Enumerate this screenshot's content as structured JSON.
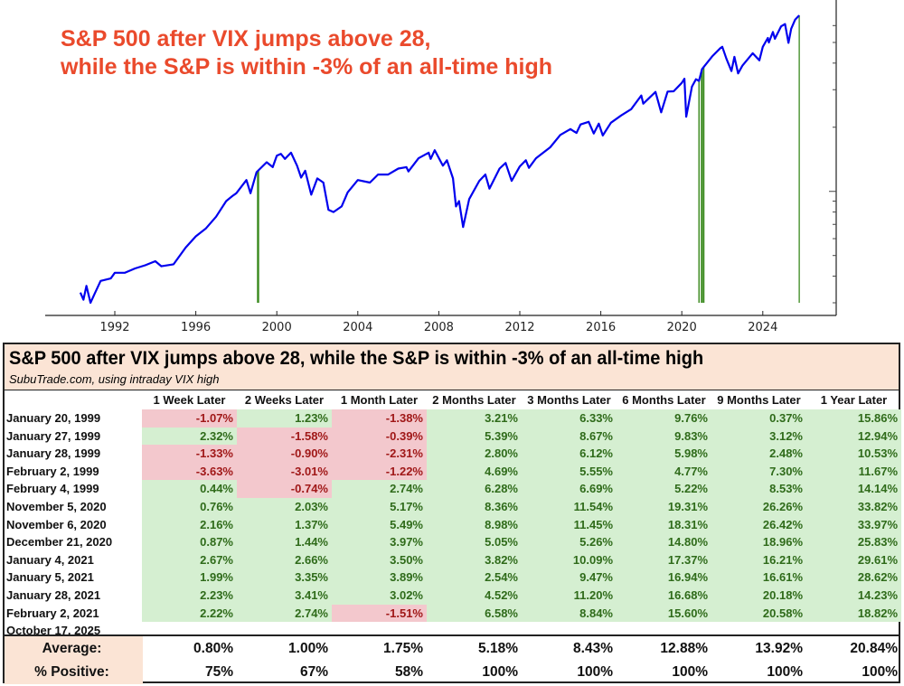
{
  "chart_data": {
    "type": "line",
    "title": "S&P 500 after VIX jumps above 28,",
    "subtitle": "while the S&P is within -3% of an all-time high",
    "xlabel": "",
    "ylabel": "",
    "y_scale": "log",
    "x_ticks": [
      "1992",
      "1996",
      "2000",
      "2004",
      "2008",
      "2012",
      "2016",
      "2020",
      "2024"
    ],
    "xlim": [
      1990,
      2027.5
    ],
    "ylim": [
      290,
      7000
    ],
    "grid": false,
    "line_color": "#0000ee",
    "event_line_color": "#3a8a1e",
    "title_color": "#ea4a2c",
    "series": [
      {
        "x": [
          1990.3,
          1990.45,
          1990.6,
          1990.8,
          1991.0,
          1991.3,
          1991.8,
          1992.0,
          1992.5,
          1993.0,
          1993.5,
          1994.0,
          1994.3,
          1994.9,
          1995.5,
          1996.0,
          1996.5,
          1997.0,
          1997.5,
          1997.8,
          1998.0,
          1998.5,
          1998.7,
          1999.0,
          1999.5,
          1999.8,
          2000.0,
          2000.2,
          2000.4,
          2000.7,
          2001.0,
          2001.2,
          2001.4,
          2001.7,
          2002.0,
          2002.3,
          2002.55,
          2002.8,
          2003.2,
          2003.5,
          2004.0,
          2004.6,
          2005.0,
          2005.5,
          2006.0,
          2006.4,
          2006.5,
          2007.0,
          2007.5,
          2007.6,
          2007.8,
          2008.2,
          2008.4,
          2008.7,
          2008.85,
          2009.0,
          2009.2,
          2009.5,
          2010.0,
          2010.3,
          2010.5,
          2011.0,
          2011.3,
          2011.6,
          2012.0,
          2012.3,
          2012.45,
          2012.8,
          2013.0,
          2013.5,
          2014.0,
          2014.5,
          2014.8,
          2015.0,
          2015.4,
          2015.65,
          2015.9,
          2016.1,
          2016.5,
          2017.0,
          2017.5,
          2018.0,
          2018.1,
          2018.7,
          2018.98,
          2019.3,
          2019.6,
          2020.0,
          2020.13,
          2020.22,
          2020.5,
          2020.7,
          2020.85,
          2021.0,
          2021.5,
          2021.9,
          2022.0,
          2022.2,
          2022.45,
          2022.6,
          2022.78,
          2023.0,
          2023.5,
          2023.83,
          2024.0,
          2024.25,
          2024.3,
          2024.5,
          2024.6,
          2024.9,
          2025.1,
          2025.27,
          2025.4,
          2025.6,
          2025.8
        ],
        "y": [
          335,
          310,
          360,
          300,
          330,
          380,
          390,
          415,
          415,
          435,
          450,
          470,
          445,
          455,
          545,
          615,
          670,
          760,
          900,
          950,
          980,
          1130,
          980,
          1230,
          1370,
          1300,
          1470,
          1500,
          1420,
          1520,
          1320,
          1160,
          1250,
          965,
          1150,
          1100,
          820,
          800,
          850,
          990,
          1130,
          1100,
          1200,
          1200,
          1280,
          1300,
          1240,
          1430,
          1520,
          1420,
          1560,
          1320,
          1400,
          1150,
          850,
          900,
          680,
          920,
          1120,
          1200,
          1030,
          1280,
          1360,
          1120,
          1310,
          1400,
          1290,
          1430,
          1480,
          1610,
          1840,
          1960,
          1880,
          2060,
          2120,
          1870,
          2080,
          1830,
          2100,
          2270,
          2430,
          2820,
          2580,
          2930,
          2350,
          2940,
          2950,
          3230,
          3380,
          2240,
          3100,
          3360,
          3300,
          3750,
          4300,
          4700,
          4770,
          4200,
          3670,
          4280,
          3580,
          3900,
          4450,
          4120,
          4770,
          5250,
          5000,
          5600,
          5200,
          5950,
          6100,
          4980,
          5800,
          6400,
          6700
        ]
      }
    ],
    "event_dates": [
      1999.05,
      1999.07,
      1999.08,
      1999.09,
      1999.1,
      2020.85,
      2020.85,
      2020.97,
      2021.01,
      2021.01,
      2021.08,
      2021.09,
      2025.8
    ]
  },
  "table": {
    "title": "S&P 500 after VIX jumps above 28, while the S&P is within -3% of an all-time high",
    "subtitle": "SubuTrade.com, using intraday VIX high",
    "columns": [
      "1 Week Later",
      "2 Weeks Later",
      "1 Month Later",
      "2 Months Later",
      "3 Months Later",
      "6 Months Later",
      "9 Months Later",
      "1 Year Later"
    ],
    "rows": [
      {
        "date": "January 20, 1999",
        "values": [
          "-1.07%",
          "1.23%",
          "-1.38%",
          "3.21%",
          "6.33%",
          "9.76%",
          "0.37%",
          "15.86%"
        ]
      },
      {
        "date": "January 27, 1999",
        "values": [
          "2.32%",
          "-1.58%",
          "-0.39%",
          "5.39%",
          "8.67%",
          "9.83%",
          "3.12%",
          "12.94%"
        ]
      },
      {
        "date": "January 28, 1999",
        "values": [
          "-1.33%",
          "-0.90%",
          "-2.31%",
          "2.80%",
          "6.12%",
          "5.98%",
          "2.48%",
          "10.53%"
        ]
      },
      {
        "date": "February 2, 1999",
        "values": [
          "-3.63%",
          "-3.01%",
          "-1.22%",
          "4.69%",
          "5.55%",
          "4.77%",
          "7.30%",
          "11.67%"
        ]
      },
      {
        "date": "February 4, 1999",
        "values": [
          "0.44%",
          "-0.74%",
          "2.74%",
          "6.28%",
          "6.69%",
          "5.22%",
          "8.53%",
          "14.14%"
        ]
      },
      {
        "date": "November 5, 2020",
        "values": [
          "0.76%",
          "2.03%",
          "5.17%",
          "8.36%",
          "11.54%",
          "19.31%",
          "26.26%",
          "33.82%"
        ]
      },
      {
        "date": "November 6, 2020",
        "values": [
          "2.16%",
          "1.37%",
          "5.49%",
          "8.98%",
          "11.45%",
          "18.31%",
          "26.42%",
          "33.97%"
        ]
      },
      {
        "date": "December 21, 2020",
        "values": [
          "0.87%",
          "1.44%",
          "3.97%",
          "5.05%",
          "5.26%",
          "14.80%",
          "18.96%",
          "25.83%"
        ]
      },
      {
        "date": "January 4, 2021",
        "values": [
          "2.67%",
          "2.66%",
          "3.50%",
          "3.82%",
          "10.09%",
          "17.37%",
          "16.21%",
          "29.61%"
        ]
      },
      {
        "date": "January 5, 2021",
        "values": [
          "1.99%",
          "3.35%",
          "3.89%",
          "2.54%",
          "9.47%",
          "16.94%",
          "16.61%",
          "28.62%"
        ]
      },
      {
        "date": "January 28, 2021",
        "values": [
          "2.23%",
          "3.41%",
          "3.02%",
          "4.52%",
          "11.20%",
          "16.68%",
          "20.18%",
          "14.23%"
        ]
      },
      {
        "date": "February 2, 2021",
        "values": [
          "2.22%",
          "2.74%",
          "-1.51%",
          "6.58%",
          "8.84%",
          "15.60%",
          "20.58%",
          "18.82%"
        ]
      },
      {
        "date": "October 17, 2025",
        "values": [
          "",
          "",
          "",
          "",
          "",
          "",
          "",
          ""
        ]
      }
    ],
    "summary": [
      {
        "label": "Average:",
        "values": [
          "0.80%",
          "1.00%",
          "1.75%",
          "5.18%",
          "8.43%",
          "12.88%",
          "13.92%",
          "20.84%"
        ]
      },
      {
        "label": "% Positive:",
        "values": [
          "75%",
          "67%",
          "58%",
          "100%",
          "100%",
          "100%",
          "100%",
          "100%"
        ]
      }
    ],
    "colors": {
      "positive_bg": "#d5efd1",
      "positive_text": "#2f6b1a",
      "negative_bg": "#f3c8cd",
      "negative_text": "#a01818",
      "header_bg": "#fbe4d5"
    }
  }
}
